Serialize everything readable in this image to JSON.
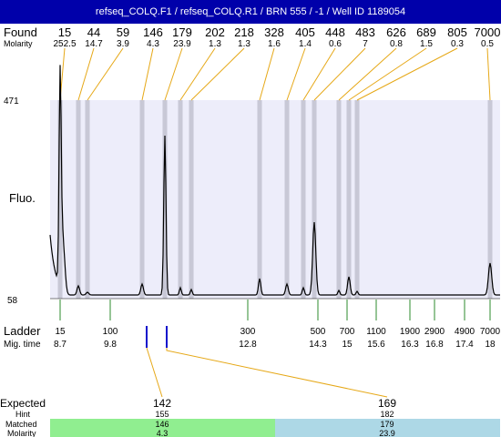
{
  "header": {
    "title": "refseq_COLQ.F1 / refseq_COLQ.R1 / BRN 555 / -1 / Well ID 1189054"
  },
  "labels": {
    "found": "Found",
    "molarity": "Molarity",
    "fluo": "Fluo.",
    "ladder": "Ladder",
    "mig_time": "Mig. time",
    "expected": "Expected",
    "hint": "Hint",
    "matched": "Matched",
    "molarity_bottom": "Molarity"
  },
  "colors": {
    "title_bar": "#0000aa",
    "plot_bg": "#ededfa",
    "peak_band": "#c8c8d6",
    "trace": "#000000",
    "found_leader": "#e6a817",
    "ladder_tick": "#2e8b2e",
    "marker_blue": "#1010cc",
    "match_green": "#90ee90",
    "match_blue": "#add8e6"
  },
  "chart_data": {
    "type": "line",
    "y_axis": {
      "min": 58,
      "max": 471,
      "tick_labels": [
        "471",
        "58"
      ]
    },
    "found_peaks": [
      {
        "size": "15",
        "molarity": "252.5"
      },
      {
        "size": "44",
        "molarity": "14.7"
      },
      {
        "size": "59",
        "molarity": "3.9"
      },
      {
        "size": "146",
        "molarity": "4.3"
      },
      {
        "size": "179",
        "molarity": "23.9"
      },
      {
        "size": "202",
        "molarity": "1.3"
      },
      {
        "size": "218",
        "molarity": "1.3"
      },
      {
        "size": "328",
        "molarity": "1.6"
      },
      {
        "size": "405",
        "molarity": "1.4"
      },
      {
        "size": "448",
        "molarity": "0.6"
      },
      {
        "size": "483",
        "molarity": "7"
      },
      {
        "size": "626",
        "molarity": "0.8"
      },
      {
        "size": "689",
        "molarity": "1.5"
      },
      {
        "size": "805",
        "molarity": "0.3"
      },
      {
        "size": "7000",
        "molarity": "0.5"
      }
    ],
    "ladder": [
      {
        "size": "15",
        "time": "8.7"
      },
      {
        "size": "100",
        "time": "9.8"
      },
      {
        "size": "300",
        "time": "12.8"
      },
      {
        "size": "500",
        "time": "14.3"
      },
      {
        "size": "700",
        "time": "15"
      },
      {
        "size": "1100",
        "time": "15.6"
      },
      {
        "size": "1900",
        "time": "16.3"
      },
      {
        "size": "2900",
        "time": "16.8"
      },
      {
        "size": "4900",
        "time": "17.4"
      },
      {
        "size": "7000",
        "time": "18"
      }
    ],
    "expected": [
      {
        "expected": "142",
        "hint": "155",
        "matched": "146",
        "molarity": "4.3"
      },
      {
        "expected": "169",
        "hint": "182",
        "matched": "179",
        "molarity": "23.9"
      }
    ]
  }
}
